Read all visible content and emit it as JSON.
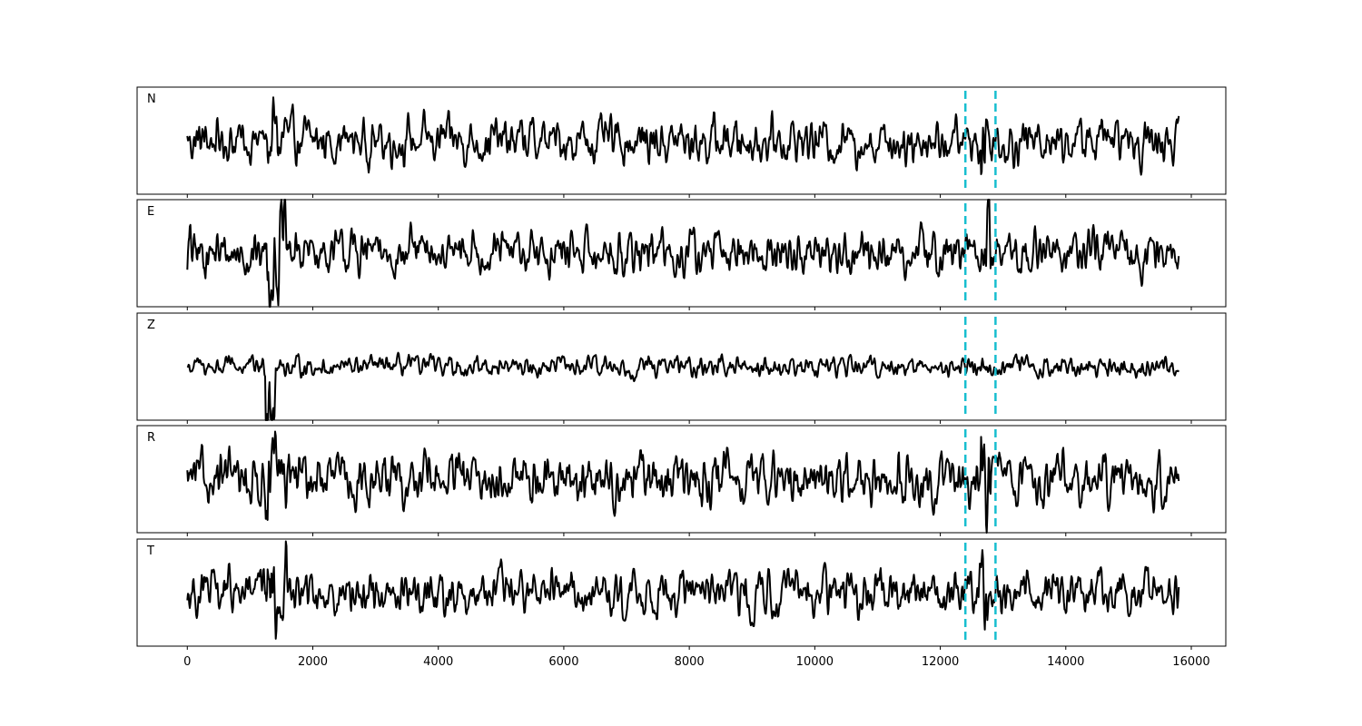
{
  "chart_data": {
    "type": "line",
    "title": "",
    "xlabel": "",
    "ylabel": "",
    "xlim": [
      -800,
      16550
    ],
    "x_ticks": [
      0,
      2000,
      4000,
      6000,
      8000,
      10000,
      12000,
      14000,
      16000
    ],
    "x_tick_labels": [
      "0",
      "2000",
      "4000",
      "6000",
      "8000",
      "10000",
      "12000",
      "14000",
      "16000"
    ],
    "sample_count": 15800,
    "grid": false,
    "legend": "none",
    "colors": {
      "trace": "#000000",
      "marker": "#17becf"
    },
    "markers": [
      {
        "x": 12400,
        "style": "dashed",
        "color": "#17becf"
      },
      {
        "x": 12880,
        "style": "dashed",
        "color": "#17becf"
      }
    ],
    "series": [
      {
        "name": "N",
        "ylim": [
          -1.2,
          1.2
        ],
        "noise_level": 0.4,
        "events": [
          {
            "start": 1250,
            "end": 1600,
            "amp": 0.9
          },
          {
            "start": 12650,
            "end": 12800,
            "amp": 1.0
          }
        ]
      },
      {
        "name": "E",
        "ylim": [
          -1.2,
          1.2
        ],
        "noise_level": 0.4,
        "events": [
          {
            "start": 0,
            "end": 60,
            "amp": 0.6
          },
          {
            "start": 1250,
            "end": 1600,
            "amp": 1.0
          },
          {
            "start": 12650,
            "end": 12800,
            "amp": 1.0
          }
        ]
      },
      {
        "name": "Z",
        "ylim": [
          -1.2,
          1.2
        ],
        "noise_level": 0.18,
        "events": [
          {
            "start": 1250,
            "end": 1400,
            "amp": 1.3
          }
        ]
      },
      {
        "name": "R",
        "ylim": [
          -1.2,
          1.2
        ],
        "noise_level": 0.45,
        "events": [
          {
            "start": 1250,
            "end": 1800,
            "amp": 0.8
          },
          {
            "start": 12650,
            "end": 12800,
            "amp": 1.1
          }
        ]
      },
      {
        "name": "T",
        "ylim": [
          -1.2,
          1.2
        ],
        "noise_level": 0.4,
        "events": [
          {
            "start": 1250,
            "end": 1600,
            "amp": 1.0
          },
          {
            "start": 12600,
            "end": 12800,
            "amp": 0.8
          }
        ]
      }
    ]
  }
}
